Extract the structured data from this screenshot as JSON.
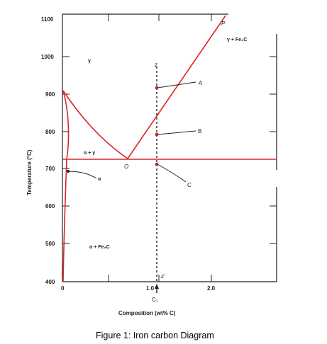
{
  "figure": {
    "caption": "Figure 1: Iron carbon Diagram"
  },
  "axes": {
    "xlabel": "Composition (wt% C)",
    "ylabel": "Temperature (°C)",
    "x_ticks": [
      "0",
      "1.0",
      "2.0"
    ],
    "y_ticks": [
      "1100",
      "1000",
      "900",
      "800",
      "700",
      "600",
      "500",
      "400"
    ]
  },
  "regions": {
    "gamma": "γ",
    "gamma_fe3c": "γ + Fe₃C",
    "alpha_gamma": "α + γ",
    "alpha": "α",
    "alpha_fe3c": "α + Fe₃C"
  },
  "points": {
    "A": "A",
    "B": "B",
    "C": "C",
    "O": "O",
    "P": "P",
    "z_top": "z",
    "z_bottom": "z'",
    "c1": "C₁"
  },
  "colors": {
    "phase_line": "#d9262a",
    "eutectoid_line": "#d9262a",
    "axis": "#222222",
    "composition_line": "#222222"
  }
}
